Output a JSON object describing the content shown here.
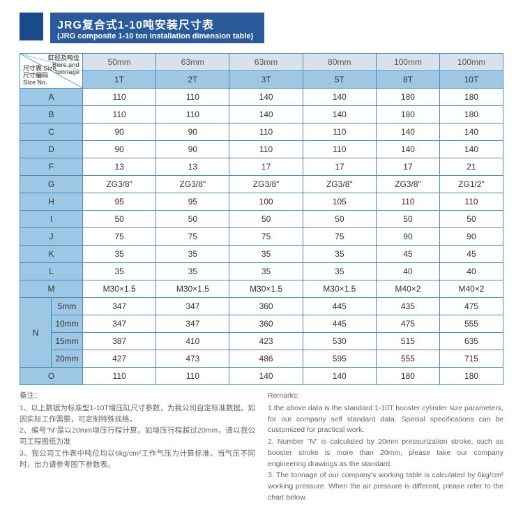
{
  "title": {
    "main": "JRG复合式1-10吨安装尺寸表",
    "sub": "(JRG composite 1-10 ton installation dimension table)"
  },
  "diag": {
    "top1": "缸径及吨位",
    "top2": "Bore and",
    "top3": "tonnage",
    "bot1": "尺寸表",
    "bot2": "Size",
    "bot3": "尺寸编码",
    "bot4": "Size No."
  },
  "cols_mm": [
    "50mm",
    "63mm",
    "63mm",
    "80mm",
    "100mm",
    "100mm"
  ],
  "cols_ton": [
    "1T",
    "2T",
    "3T",
    "5T",
    "8T",
    "10T"
  ],
  "rows": [
    {
      "k": "A",
      "v": [
        "110",
        "110",
        "140",
        "140",
        "180",
        "180"
      ]
    },
    {
      "k": "B",
      "v": [
        "110",
        "110",
        "140",
        "140",
        "180",
        "180"
      ]
    },
    {
      "k": "C",
      "v": [
        "90",
        "90",
        "110",
        "110",
        "140",
        "140"
      ]
    },
    {
      "k": "D",
      "v": [
        "90",
        "90",
        "110",
        "110",
        "140",
        "140"
      ]
    },
    {
      "k": "F",
      "v": [
        "13",
        "13",
        "17",
        "17",
        "17",
        "21"
      ]
    },
    {
      "k": "G",
      "v": [
        "ZG3/8\"",
        "ZG3/8\"",
        "ZG3/8\"",
        "ZG3/8\"",
        "ZG3/8\"",
        "ZG1/2\""
      ]
    },
    {
      "k": "H",
      "v": [
        "95",
        "95",
        "100",
        "105",
        "110",
        "110"
      ]
    },
    {
      "k": "I",
      "v": [
        "50",
        "50",
        "50",
        "50",
        "50",
        "50"
      ]
    },
    {
      "k": "J",
      "v": [
        "75",
        "75",
        "75",
        "75",
        "90",
        "90"
      ]
    },
    {
      "k": "K",
      "v": [
        "35",
        "35",
        "35",
        "35",
        "45",
        "45"
      ]
    },
    {
      "k": "L",
      "v": [
        "35",
        "35",
        "35",
        "35",
        "40",
        "40"
      ]
    },
    {
      "k": "M",
      "v": [
        "M30×1.5",
        "M30×1.5",
        "M30×1.5",
        "M30×1.5",
        "M40×2",
        "M40×2"
      ]
    }
  ],
  "n_group": {
    "label": "N",
    "rows": [
      {
        "k": "5mm",
        "v": [
          "347",
          "347",
          "360",
          "445",
          "435",
          "475"
        ]
      },
      {
        "k": "10mm",
        "v": [
          "347",
          "347",
          "360",
          "445",
          "475",
          "555"
        ]
      },
      {
        "k": "15mm",
        "v": [
          "387",
          "410",
          "423",
          "530",
          "515",
          "635"
        ]
      },
      {
        "k": "20mm",
        "v": [
          "427",
          "473",
          "486",
          "595",
          "555",
          "715"
        ]
      }
    ]
  },
  "row_o": {
    "k": "O",
    "v": [
      "110",
      "110",
      "140",
      "140",
      "180",
      "180"
    ]
  },
  "remarks_cn": {
    "head": "备注：",
    "items": [
      "1、以上数据为标准型1-10T增压缸尺寸参数，为我公司自定标准数据。如因实际工作需要，可定制特殊规格。",
      "2、编号\"N\"是以20mm增压行程计算，如增压行程超过20mm，请以我公司工程图纸为准",
      "3、我公司工作表中吨位均以6kg/cm²工作气压为计算标准。当气压不同时，出力请参考图下参数表。"
    ]
  },
  "remarks_en": {
    "head": "Remarks:",
    "items": [
      "1.the above data is the standard 1-10T booster cylinder size parameters, for our company self standard data. Special specifications can be customized for practical work.",
      "2. Number \"N\" is calculated by 20mm pressurization stroke, such as booster stroke is more than 20mm, please take our company engineering drawings as the standard.",
      "3. The tonnage of our company's working table is calculated by 6kg/cm² working pressure. When the air pressure is different, please refer to the chart below."
    ]
  },
  "style": {
    "col_widths": {
      "label": "90px",
      "data": "100px"
    },
    "colors": {
      "header_light": "#d7e2ed",
      "header_blue": "#9dc7e5",
      "border": "#4a8abb",
      "title_bg": "#2a5a9a",
      "title_block": "#1a4a8a"
    }
  }
}
